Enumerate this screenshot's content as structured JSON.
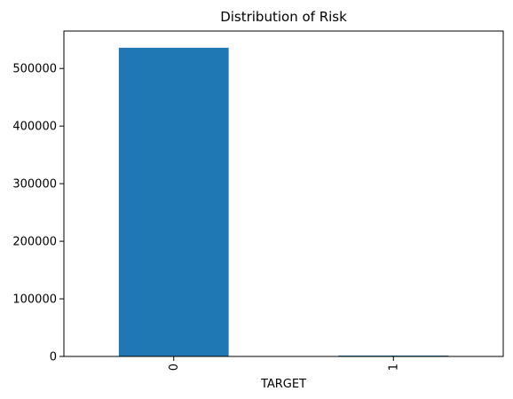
{
  "chart_data": {
    "type": "bar",
    "title": "Distribution of Risk",
    "xlabel": "TARGET",
    "ylabel": "",
    "categories": [
      "0",
      "1"
    ],
    "values": [
      536000,
      1500
    ],
    "ylim": [
      0,
      565000
    ],
    "yticks": [
      0,
      100000,
      200000,
      300000,
      400000,
      500000
    ],
    "ytick_labels": [
      "0",
      "100000",
      "200000",
      "300000",
      "400000",
      "500000"
    ],
    "xtick_rotation": "vertical",
    "grid": false,
    "legend": "none",
    "colors": {
      "bar": "#1f77b4",
      "axis": "#000000",
      "background": "#ffffff"
    }
  }
}
